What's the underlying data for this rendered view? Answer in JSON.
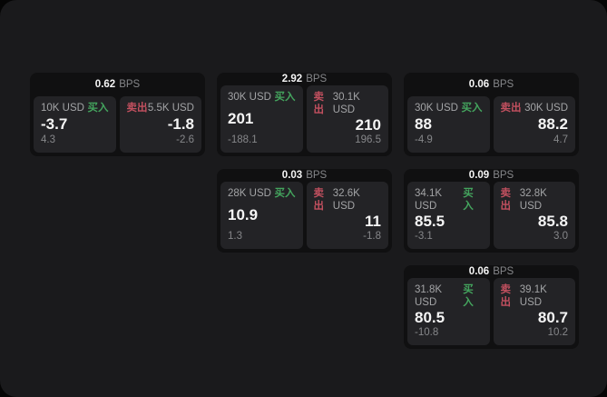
{
  "labels": {
    "bps_unit": "BPS",
    "buy": "买入",
    "sell": "卖出"
  },
  "colors": {
    "page_bg": "#050505",
    "window_bg": "#1a1a1c",
    "card_bg": "#101011",
    "panel_bg": "#232326",
    "text_primary": "#f5f5f5",
    "text_secondary": "#a3a4a6",
    "text_muted": "#86878a",
    "buy_green": "#44a55e",
    "sell_red": "#c2505f"
  },
  "cards": [
    {
      "bps": "0.62",
      "buy": {
        "amount": "10K USD",
        "value": "-3.7",
        "sub": "4.3"
      },
      "sell": {
        "amount": "5.5K USD",
        "value": "-1.8",
        "sub": "-2.6"
      }
    },
    {
      "bps": "2.92",
      "buy": {
        "amount": "30K USD",
        "value": "201",
        "sub": "-188.1"
      },
      "sell": {
        "amount": "30.1K USD",
        "value": "210",
        "sub": "196.5"
      }
    },
    {
      "bps": "0.06",
      "buy": {
        "amount": "30K USD",
        "value": "88",
        "sub": "-4.9"
      },
      "sell": {
        "amount": "30K USD",
        "value": "88.2",
        "sub": "4.7"
      }
    },
    {
      "bps": "0.03",
      "buy": {
        "amount": "28K USD",
        "value": "10.9",
        "sub": "1.3"
      },
      "sell": {
        "amount": "32.6K USD",
        "value": "11",
        "sub": "-1.8"
      }
    },
    {
      "bps": "0.09",
      "buy": {
        "amount": "34.1K USD",
        "value": "85.5",
        "sub": "-3.1"
      },
      "sell": {
        "amount": "32.8K USD",
        "value": "85.8",
        "sub": "3.0"
      }
    },
    {
      "bps": "0.06",
      "buy": {
        "amount": "31.8K USD",
        "value": "80.5",
        "sub": "-10.8"
      },
      "sell": {
        "amount": "39.1K USD",
        "value": "80.7",
        "sub": "10.2"
      }
    }
  ]
}
